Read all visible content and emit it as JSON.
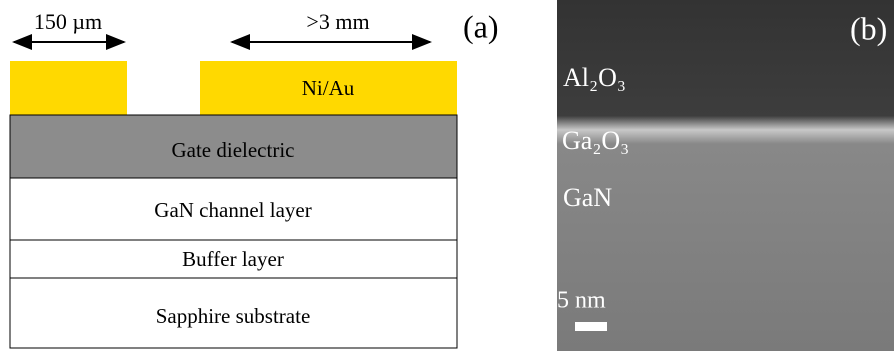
{
  "panel_a": {
    "label": "(a)",
    "left_width": "150 µm",
    "right_width": ">3 mm",
    "contact": "Ni/Au",
    "layers": [
      "Gate dielectric",
      "GaN channel layer",
      "Buffer layer",
      "Sapphire substrate"
    ]
  },
  "panel_b": {
    "label": "(b)",
    "regions": [
      "Al₂O₃",
      "Ga₂O₃",
      "GaN"
    ],
    "scale_bar": "5 nm"
  }
}
